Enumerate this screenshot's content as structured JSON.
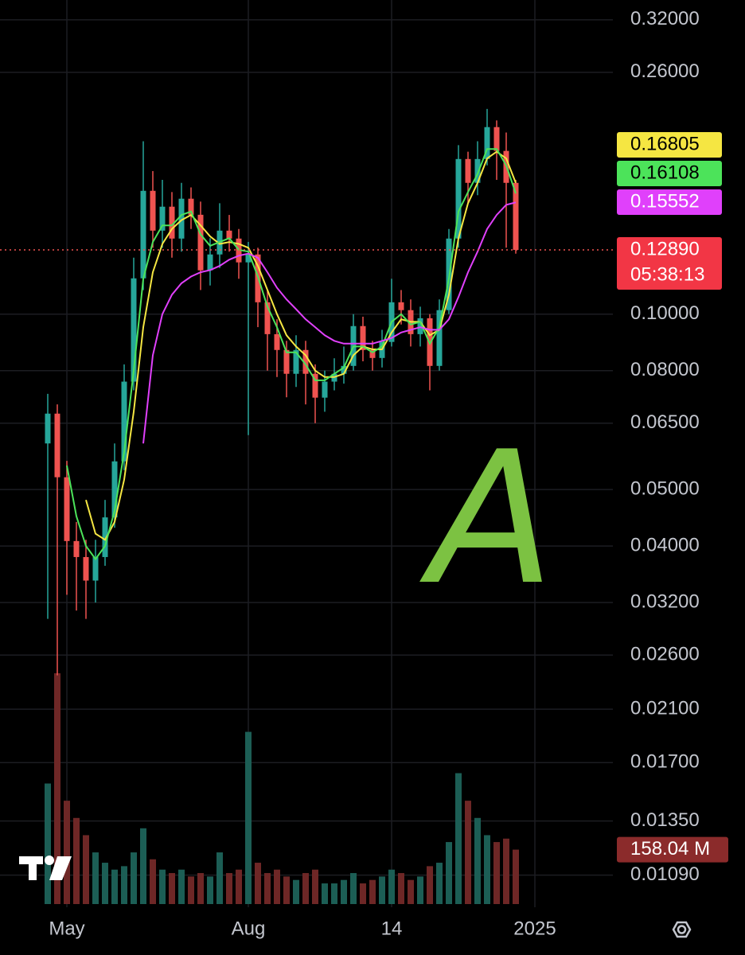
{
  "chart_data": {
    "type": "candlestick",
    "categories": [
      null,
      null,
      "May",
      null,
      null,
      null,
      null,
      null,
      null,
      null,
      null,
      null,
      null,
      null,
      null,
      null,
      null,
      null,
      null,
      null,
      null,
      "Aug",
      null,
      null,
      null,
      null,
      null,
      null,
      null,
      null,
      null,
      null,
      null,
      null,
      null,
      null,
      "14",
      null,
      null,
      null,
      null,
      null,
      null,
      null,
      null,
      null,
      null,
      null,
      null,
      null,
      null,
      "2025"
    ],
    "candles": {
      "up_color": "#26a69a",
      "down_color": "#ef5350",
      "open": [
        0.06,
        0.0675,
        0.0525,
        0.0408,
        0.0383,
        0.0349,
        0.0383,
        0.0448,
        0.0559,
        0.0766,
        0.1152,
        0.1628,
        0.1391,
        0.1529,
        0.1348,
        0.1578,
        0.1481,
        0.1189,
        0.1266,
        0.1391,
        0.1348,
        0.1227,
        0.1266,
        0.1048,
        0.0924,
        0.0868,
        0.079,
        0.0868,
        0.079,
        0.0719,
        0.0766,
        0.079,
        0.0815,
        0.0954,
        0.0868,
        0.0841,
        0.0896,
        0.1048,
        0.1016,
        0.0924,
        0.0984,
        0.0815,
        0.1016,
        0.1348,
        0.1846,
        0.168,
        0.1846,
        0.2094,
        0.1906,
        0.168,
        null,
        null
      ],
      "high": [
        0.073,
        0.07,
        0.056,
        0.044,
        0.041,
        0.041,
        0.048,
        0.06,
        0.082,
        0.125,
        0.198,
        0.176,
        0.17,
        0.162,
        0.168,
        0.165,
        0.156,
        0.135,
        0.155,
        0.148,
        0.14,
        0.133,
        0.13,
        0.11,
        0.098,
        0.09,
        0.092,
        0.09,
        0.082,
        0.08,
        0.084,
        0.088,
        0.1,
        0.099,
        0.09,
        0.094,
        0.115,
        0.11,
        0.106,
        0.103,
        0.1,
        0.106,
        0.14,
        0.195,
        0.19,
        0.198,
        0.225,
        0.215,
        0.205,
        0.17,
        null,
        null
      ],
      "low": [
        0.03,
        0.024,
        0.033,
        0.031,
        0.03,
        0.032,
        0.037,
        0.043,
        0.054,
        0.074,
        0.11,
        0.13,
        0.13,
        0.125,
        0.128,
        0.14,
        0.11,
        0.112,
        0.12,
        0.128,
        0.115,
        0.062,
        0.095,
        0.08,
        0.078,
        0.072,
        0.075,
        0.07,
        0.065,
        0.068,
        0.074,
        0.076,
        0.08,
        0.083,
        0.08,
        0.081,
        0.088,
        0.096,
        0.088,
        0.088,
        0.074,
        0.08,
        0.1,
        0.13,
        0.155,
        0.16,
        0.18,
        0.17,
        0.13,
        0.127,
        null,
        null
      ],
      "close": [
        0.0675,
        0.0525,
        0.0408,
        0.0383,
        0.0349,
        0.0383,
        0.0448,
        0.0559,
        0.0766,
        0.1152,
        0.1628,
        0.1391,
        0.1529,
        0.1348,
        0.1578,
        0.1481,
        0.1189,
        0.1266,
        0.1391,
        0.1348,
        0.1227,
        0.1266,
        0.1048,
        0.0924,
        0.0868,
        0.079,
        0.0868,
        0.079,
        0.0719,
        0.0766,
        0.079,
        0.0815,
        0.0954,
        0.0868,
        0.0841,
        0.0896,
        0.1048,
        0.1016,
        0.0924,
        0.0984,
        0.0815,
        0.1016,
        0.1348,
        0.1846,
        0.168,
        0.1846,
        0.2094,
        0.1906,
        0.168,
        0.1289,
        null,
        null
      ]
    },
    "series": [
      {
        "color": "#f5e642",
        "values": [
          null,
          null,
          null,
          null,
          0.048,
          0.042,
          0.041,
          0.044,
          0.052,
          0.068,
          0.095,
          0.118,
          0.132,
          0.14,
          0.145,
          0.148,
          0.142,
          0.136,
          0.132,
          0.133,
          0.132,
          0.13,
          0.121,
          0.11,
          0.1,
          0.092,
          0.088,
          0.085,
          0.08,
          0.078,
          0.078,
          0.079,
          0.085,
          0.088,
          0.087,
          0.087,
          0.093,
          0.098,
          0.097,
          0.097,
          0.092,
          0.094,
          0.108,
          0.135,
          0.155,
          0.168,
          0.185,
          0.19,
          0.185,
          0.16805,
          null,
          null
        ]
      },
      {
        "color": "#4ce35a",
        "values": [
          null,
          null,
          0.055,
          0.045,
          0.04,
          0.038,
          0.04,
          0.046,
          0.058,
          0.08,
          0.115,
          0.133,
          0.142,
          0.142,
          0.148,
          0.15,
          0.137,
          0.131,
          0.133,
          0.135,
          0.129,
          0.128,
          0.116,
          0.103,
          0.095,
          0.086,
          0.086,
          0.082,
          0.077,
          0.077,
          0.079,
          0.081,
          0.088,
          0.088,
          0.086,
          0.088,
          0.097,
          0.1,
          0.096,
          0.097,
          0.089,
          0.095,
          0.115,
          0.15,
          0.162,
          0.174,
          0.192,
          0.192,
          0.18,
          0.16108,
          null,
          null
        ]
      },
      {
        "color": "#e040fb",
        "values": [
          null,
          null,
          null,
          null,
          null,
          null,
          null,
          null,
          null,
          null,
          0.06,
          0.085,
          0.1,
          0.108,
          0.113,
          0.116,
          0.118,
          0.119,
          0.121,
          0.124,
          0.126,
          0.127,
          0.125,
          0.118,
          0.111,
          0.106,
          0.102,
          0.098,
          0.095,
          0.092,
          0.09,
          0.089,
          0.089,
          0.089,
          0.089,
          0.09,
          0.091,
          0.093,
          0.094,
          0.095,
          0.094,
          0.094,
          0.098,
          0.107,
          0.118,
          0.128,
          0.14,
          0.148,
          0.154,
          0.15552,
          null,
          null
        ]
      }
    ],
    "volume": [
      350,
      670,
      300,
      250,
      200,
      150,
      120,
      100,
      110,
      150,
      220,
      130,
      100,
      90,
      100,
      80,
      90,
      80,
      150,
      90,
      100,
      500,
      120,
      90,
      100,
      80,
      70,
      90,
      100,
      60,
      60,
      70,
      90,
      60,
      70,
      80,
      100,
      90,
      70,
      80,
      110,
      120,
      180,
      380,
      300,
      250,
      200,
      180,
      190,
      158.04,
      null,
      null
    ],
    "current_price": {
      "value": 0.1289,
      "label": "0.12890"
    },
    "countdown": "05:38:13",
    "current_volume": {
      "value": 158.04,
      "label": "158.04 M"
    },
    "log_scale": true,
    "ylim": [
      0.0096,
      0.346
    ],
    "yticks": [
      {
        "value": 0.32,
        "label": "0.32000"
      },
      {
        "value": 0.26,
        "label": "0.26000"
      },
      {
        "value": 0.1,
        "label": "0.10000"
      },
      {
        "value": 0.08,
        "label": "0.08000"
      },
      {
        "value": 0.065,
        "label": "0.06500"
      },
      {
        "value": 0.05,
        "label": "0.05000"
      },
      {
        "value": 0.04,
        "label": "0.04000"
      },
      {
        "value": 0.032,
        "label": "0.03200"
      },
      {
        "value": 0.026,
        "label": "0.02600"
      },
      {
        "value": 0.021,
        "label": "0.02100"
      },
      {
        "value": 0.017,
        "label": "0.01700"
      },
      {
        "value": 0.0135,
        "label": "0.01350"
      },
      {
        "value": 0.0109,
        "label": "0.01090"
      }
    ],
    "grid": true,
    "annotation": "A"
  }
}
